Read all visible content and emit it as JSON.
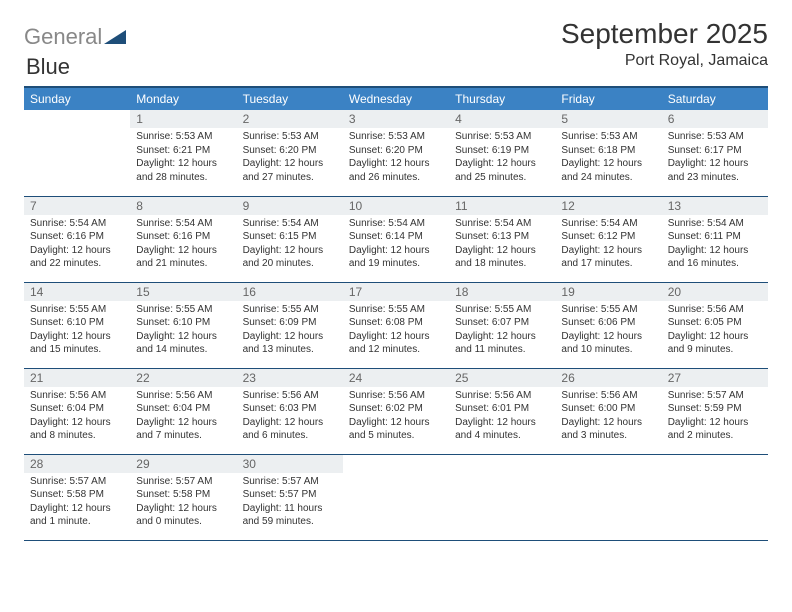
{
  "brand": {
    "word1": "General",
    "word2": "Blue",
    "tri_color": "#1e4e79"
  },
  "title": "September 2025",
  "location": "Port Royal, Jamaica",
  "header_bg": "#3b82c4",
  "header_fg": "#ffffff",
  "border_color": "#1e4e79",
  "daynum_bg": "#eceff1",
  "columns": [
    "Sunday",
    "Monday",
    "Tuesday",
    "Wednesday",
    "Thursday",
    "Friday",
    "Saturday"
  ],
  "weeks": [
    [
      null,
      {
        "n": "1",
        "sr": "5:53 AM",
        "ss": "6:21 PM",
        "dl": "12 hours and 28 minutes."
      },
      {
        "n": "2",
        "sr": "5:53 AM",
        "ss": "6:20 PM",
        "dl": "12 hours and 27 minutes."
      },
      {
        "n": "3",
        "sr": "5:53 AM",
        "ss": "6:20 PM",
        "dl": "12 hours and 26 minutes."
      },
      {
        "n": "4",
        "sr": "5:53 AM",
        "ss": "6:19 PM",
        "dl": "12 hours and 25 minutes."
      },
      {
        "n": "5",
        "sr": "5:53 AM",
        "ss": "6:18 PM",
        "dl": "12 hours and 24 minutes."
      },
      {
        "n": "6",
        "sr": "5:53 AM",
        "ss": "6:17 PM",
        "dl": "12 hours and 23 minutes."
      }
    ],
    [
      {
        "n": "7",
        "sr": "5:54 AM",
        "ss": "6:16 PM",
        "dl": "12 hours and 22 minutes."
      },
      {
        "n": "8",
        "sr": "5:54 AM",
        "ss": "6:16 PM",
        "dl": "12 hours and 21 minutes."
      },
      {
        "n": "9",
        "sr": "5:54 AM",
        "ss": "6:15 PM",
        "dl": "12 hours and 20 minutes."
      },
      {
        "n": "10",
        "sr": "5:54 AM",
        "ss": "6:14 PM",
        "dl": "12 hours and 19 minutes."
      },
      {
        "n": "11",
        "sr": "5:54 AM",
        "ss": "6:13 PM",
        "dl": "12 hours and 18 minutes."
      },
      {
        "n": "12",
        "sr": "5:54 AM",
        "ss": "6:12 PM",
        "dl": "12 hours and 17 minutes."
      },
      {
        "n": "13",
        "sr": "5:54 AM",
        "ss": "6:11 PM",
        "dl": "12 hours and 16 minutes."
      }
    ],
    [
      {
        "n": "14",
        "sr": "5:55 AM",
        "ss": "6:10 PM",
        "dl": "12 hours and 15 minutes."
      },
      {
        "n": "15",
        "sr": "5:55 AM",
        "ss": "6:10 PM",
        "dl": "12 hours and 14 minutes."
      },
      {
        "n": "16",
        "sr": "5:55 AM",
        "ss": "6:09 PM",
        "dl": "12 hours and 13 minutes."
      },
      {
        "n": "17",
        "sr": "5:55 AM",
        "ss": "6:08 PM",
        "dl": "12 hours and 12 minutes."
      },
      {
        "n": "18",
        "sr": "5:55 AM",
        "ss": "6:07 PM",
        "dl": "12 hours and 11 minutes."
      },
      {
        "n": "19",
        "sr": "5:55 AM",
        "ss": "6:06 PM",
        "dl": "12 hours and 10 minutes."
      },
      {
        "n": "20",
        "sr": "5:56 AM",
        "ss": "6:05 PM",
        "dl": "12 hours and 9 minutes."
      }
    ],
    [
      {
        "n": "21",
        "sr": "5:56 AM",
        "ss": "6:04 PM",
        "dl": "12 hours and 8 minutes."
      },
      {
        "n": "22",
        "sr": "5:56 AM",
        "ss": "6:04 PM",
        "dl": "12 hours and 7 minutes."
      },
      {
        "n": "23",
        "sr": "5:56 AM",
        "ss": "6:03 PM",
        "dl": "12 hours and 6 minutes."
      },
      {
        "n": "24",
        "sr": "5:56 AM",
        "ss": "6:02 PM",
        "dl": "12 hours and 5 minutes."
      },
      {
        "n": "25",
        "sr": "5:56 AM",
        "ss": "6:01 PM",
        "dl": "12 hours and 4 minutes."
      },
      {
        "n": "26",
        "sr": "5:56 AM",
        "ss": "6:00 PM",
        "dl": "12 hours and 3 minutes."
      },
      {
        "n": "27",
        "sr": "5:57 AM",
        "ss": "5:59 PM",
        "dl": "12 hours and 2 minutes."
      }
    ],
    [
      {
        "n": "28",
        "sr": "5:57 AM",
        "ss": "5:58 PM",
        "dl": "12 hours and 1 minute."
      },
      {
        "n": "29",
        "sr": "5:57 AM",
        "ss": "5:58 PM",
        "dl": "12 hours and 0 minutes."
      },
      {
        "n": "30",
        "sr": "5:57 AM",
        "ss": "5:57 PM",
        "dl": "11 hours and 59 minutes."
      },
      null,
      null,
      null,
      null
    ]
  ],
  "labels": {
    "sunrise": "Sunrise:",
    "sunset": "Sunset:",
    "daylight": "Daylight:"
  }
}
